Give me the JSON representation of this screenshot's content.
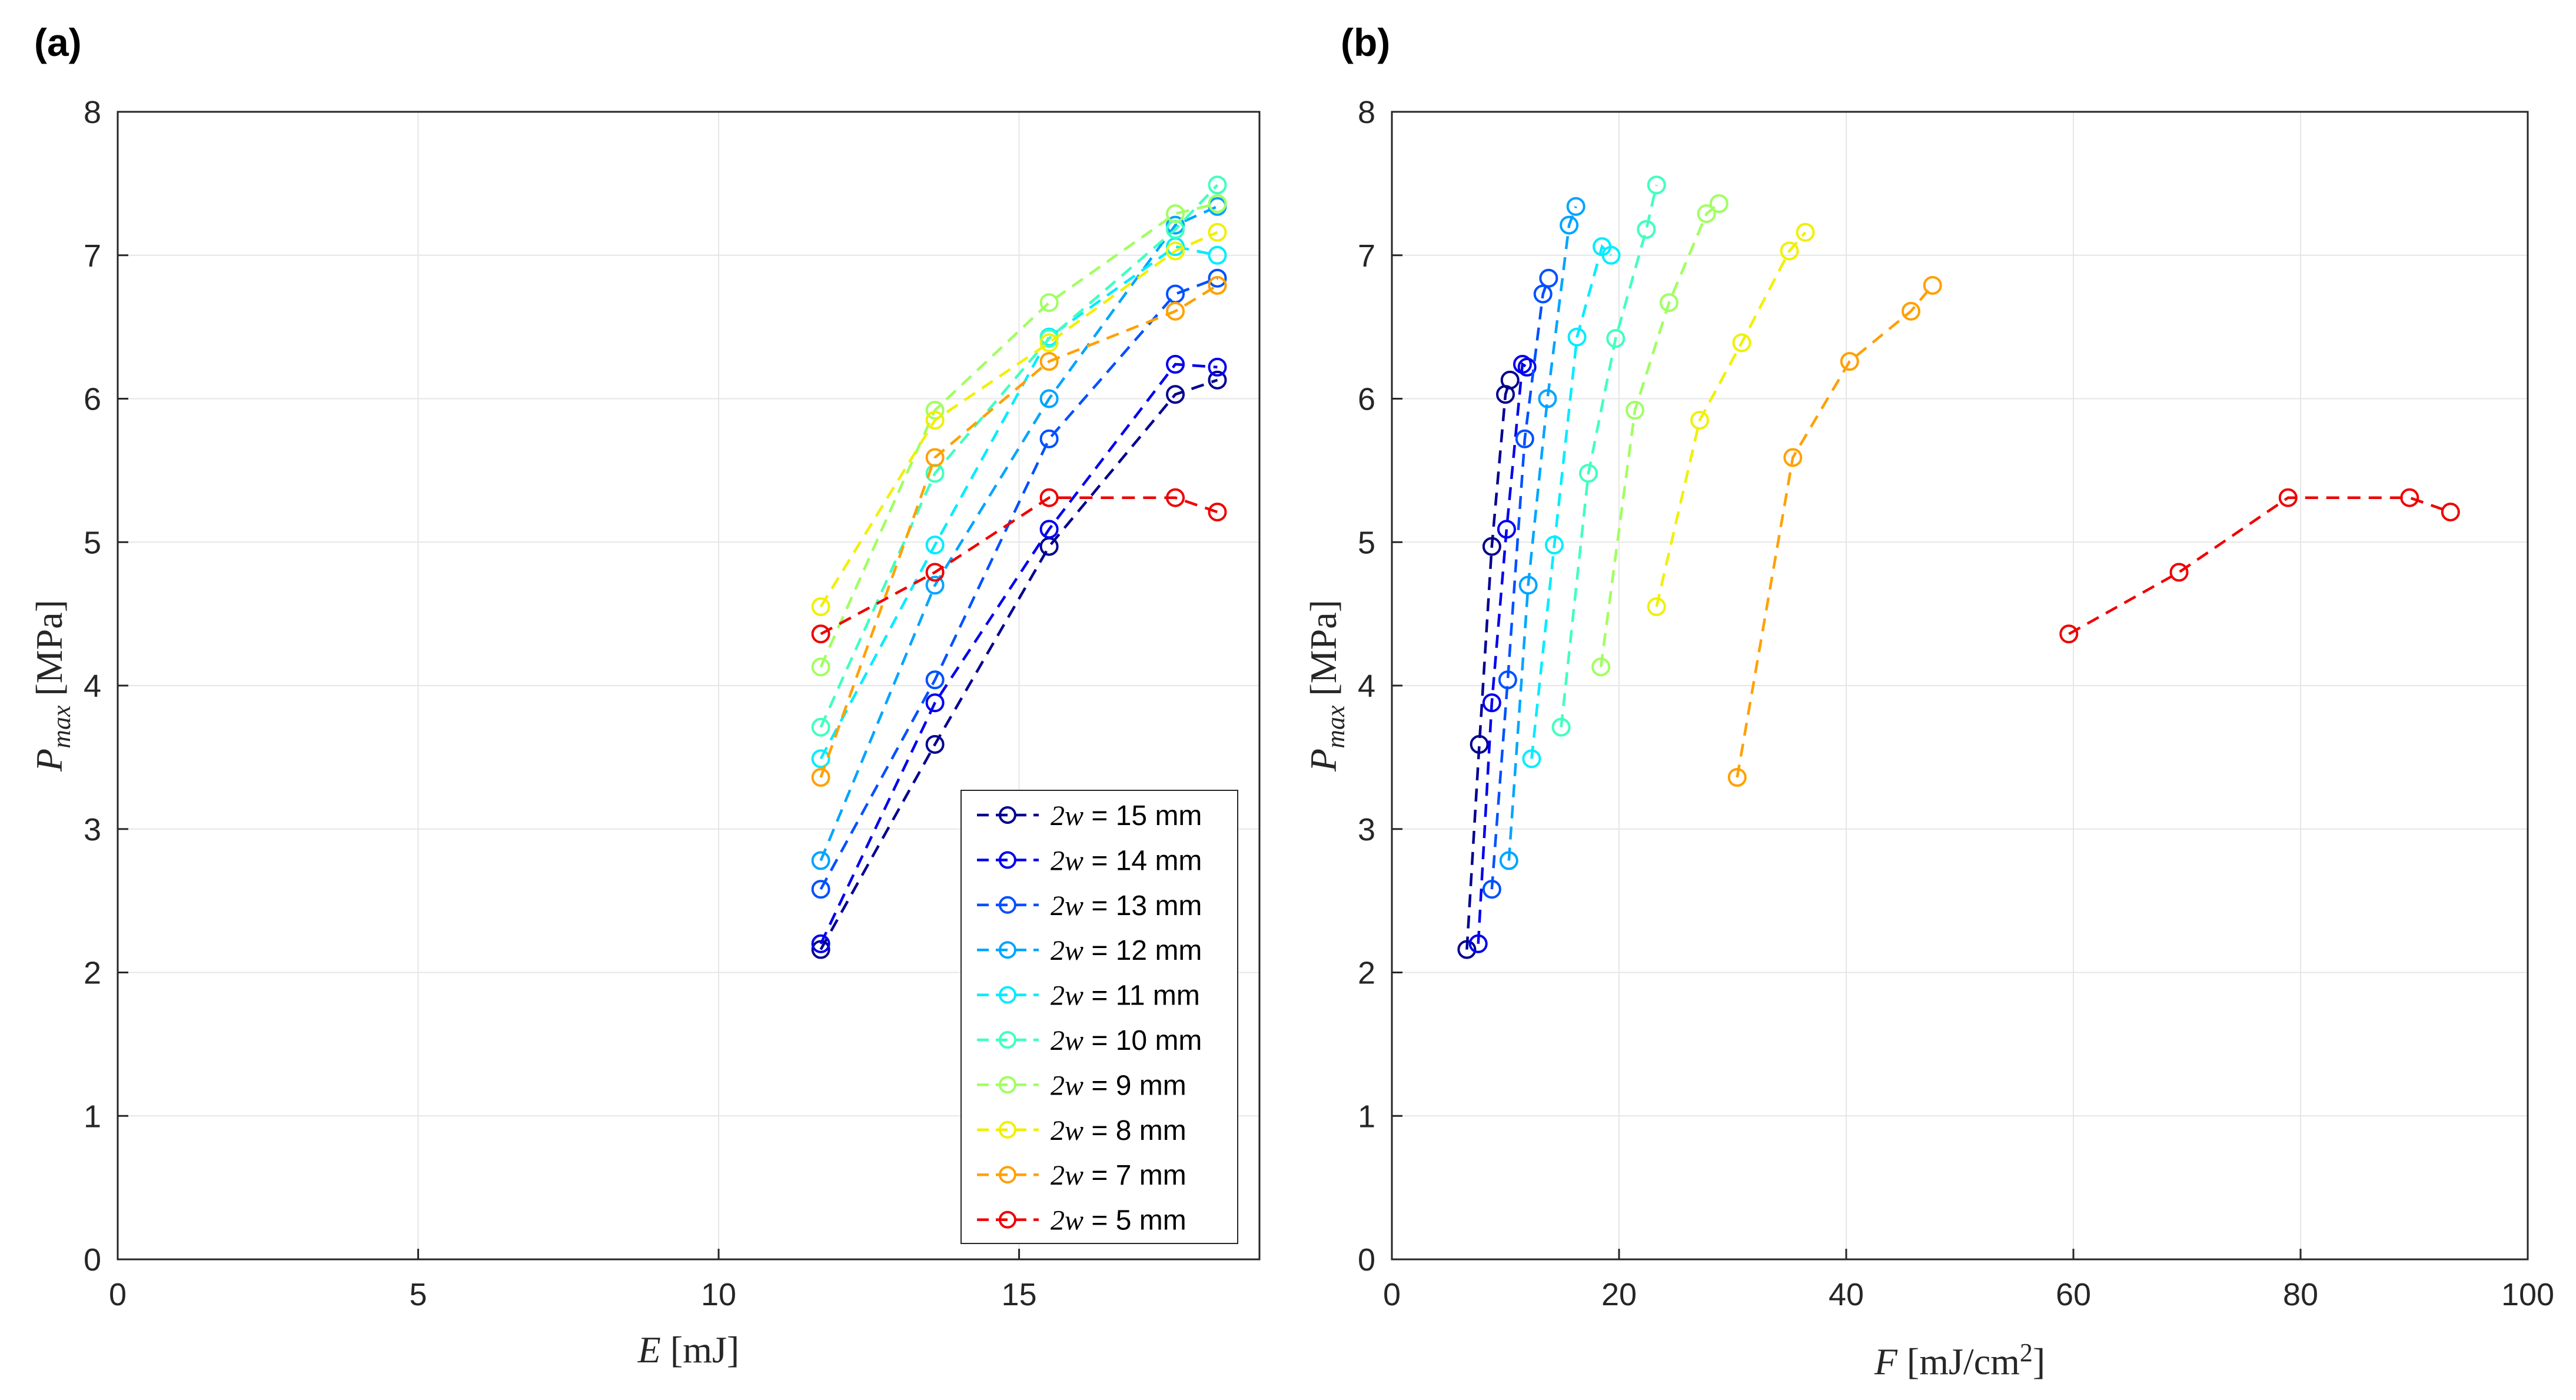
{
  "chart_data": [
    {
      "panel_label": "(a)",
      "type": "line",
      "xlabel_var": "E",
      "xlabel_unit": " [mJ]",
      "ylabel_var": "P",
      "ylabel_sub": "max",
      "ylabel_unit": " [MPa]",
      "xlim": [
        0,
        19
      ],
      "ylim": [
        0,
        8
      ],
      "xticks": [
        "0",
        "5",
        "10",
        "15"
      ],
      "xtick_values": [
        0,
        5,
        10,
        15
      ],
      "yticks": [
        "0",
        "1",
        "2",
        "3",
        "4",
        "5",
        "6",
        "7",
        "8"
      ],
      "ytick_values": [
        0,
        1,
        2,
        3,
        4,
        5,
        6,
        7,
        8
      ],
      "grid": true,
      "legend_position": "lower-right",
      "series": [
        {
          "name_prefix": "2w",
          "name_suffix": " = 15 mm",
          "color": "#00008f",
          "x": [
            11.7,
            13.6,
            15.5,
            17.6,
            18.3
          ],
          "y": [
            2.16,
            3.59,
            4.97,
            6.03,
            6.13
          ]
        },
        {
          "name_prefix": "2w",
          "name_suffix": " = 14 mm",
          "color": "#0000ef",
          "x": [
            11.7,
            13.6,
            15.5,
            17.6,
            18.3
          ],
          "y": [
            2.2,
            3.88,
            5.09,
            6.24,
            6.22
          ]
        },
        {
          "name_prefix": "2w",
          "name_suffix": " = 13 mm",
          "color": "#0050ff",
          "x": [
            11.7,
            13.6,
            15.5,
            17.6,
            18.3
          ],
          "y": [
            2.58,
            4.04,
            5.72,
            6.73,
            6.84
          ]
        },
        {
          "name_prefix": "2w",
          "name_suffix": " = 12 mm",
          "color": "#00a4ff",
          "x": [
            11.7,
            13.6,
            15.5,
            17.6,
            18.3
          ],
          "y": [
            2.78,
            4.7,
            6.0,
            7.21,
            7.34
          ]
        },
        {
          "name_prefix": "2w",
          "name_suffix": " = 11 mm",
          "color": "#00ecff",
          "x": [
            11.7,
            13.6,
            15.5,
            17.6,
            18.3
          ],
          "y": [
            3.49,
            4.98,
            6.43,
            7.06,
            7.0
          ]
        },
        {
          "name_prefix": "2w",
          "name_suffix": " = 10 mm",
          "color": "#40ffbf",
          "x": [
            11.7,
            13.6,
            15.5,
            17.6,
            18.3
          ],
          "y": [
            3.71,
            5.48,
            6.42,
            7.18,
            7.49
          ]
        },
        {
          "name_prefix": "2w",
          "name_suffix": " = 9 mm",
          "color": "#a0ff60",
          "x": [
            11.7,
            13.6,
            15.5,
            17.6,
            18.3
          ],
          "y": [
            4.13,
            5.92,
            6.67,
            7.29,
            7.36
          ]
        },
        {
          "name_prefix": "2w",
          "name_suffix": " = 8 mm",
          "color": "#f0f000",
          "x": [
            11.7,
            13.6,
            15.5,
            17.6,
            18.3
          ],
          "y": [
            4.55,
            5.85,
            6.39,
            7.03,
            7.16
          ]
        },
        {
          "name_prefix": "2w",
          "name_suffix": " = 7 mm",
          "color": "#ffa000",
          "x": [
            11.7,
            13.6,
            15.5,
            17.6,
            18.3
          ],
          "y": [
            3.36,
            5.59,
            6.26,
            6.61,
            6.79
          ]
        },
        {
          "name_prefix": "2w",
          "name_suffix": " = 5 mm",
          "color": "#ee0000",
          "x": [
            11.7,
            13.6,
            15.5,
            17.6,
            18.3
          ],
          "y": [
            4.36,
            4.79,
            5.31,
            5.31,
            5.21
          ]
        }
      ]
    },
    {
      "panel_label": "(b)",
      "type": "line",
      "xlabel_var": "F",
      "xlabel_unit": " [mJ/cm",
      "xlabel_sup": "2",
      "xlabel_close": "]",
      "ylabel_var": "P",
      "ylabel_sub": "max",
      "ylabel_unit": " [MPa]",
      "xlim": [
        0,
        100
      ],
      "ylim": [
        0,
        8
      ],
      "xticks": [
        "0",
        "20",
        "40",
        "60",
        "80",
        "100"
      ],
      "xtick_values": [
        0,
        20,
        40,
        60,
        80,
        100
      ],
      "yticks": [
        "0",
        "1",
        "2",
        "3",
        "4",
        "5",
        "6",
        "7",
        "8"
      ],
      "ytick_values": [
        0,
        1,
        2,
        3,
        4,
        5,
        6,
        7,
        8
      ],
      "grid": true,
      "series": [
        {
          "name": "2w = 15 mm",
          "color": "#00008f",
          "x": [
            6.6,
            7.7,
            8.8,
            10.0,
            10.4
          ],
          "y": [
            2.16,
            3.59,
            4.97,
            6.03,
            6.13
          ]
        },
        {
          "name": "2w = 14 mm",
          "color": "#0000ef",
          "x": [
            7.6,
            8.8,
            10.1,
            11.5,
            11.9
          ],
          "y": [
            2.2,
            3.88,
            5.09,
            6.24,
            6.22
          ]
        },
        {
          "name": "2w = 13 mm",
          "color": "#0050ff",
          "x": [
            8.8,
            10.2,
            11.7,
            13.3,
            13.8
          ],
          "y": [
            2.58,
            4.04,
            5.72,
            6.73,
            6.84
          ]
        },
        {
          "name": "2w = 12 mm",
          "color": "#00a4ff",
          "x": [
            10.3,
            12.0,
            13.7,
            15.6,
            16.2
          ],
          "y": [
            2.78,
            4.7,
            6.0,
            7.21,
            7.34
          ]
        },
        {
          "name": "2w = 11 mm",
          "color": "#00ecff",
          "x": [
            12.3,
            14.3,
            16.3,
            18.5,
            19.3
          ],
          "y": [
            3.49,
            4.98,
            6.43,
            7.06,
            7.0
          ]
        },
        {
          "name": "2w = 10 mm",
          "color": "#40ffbf",
          "x": [
            14.9,
            17.3,
            19.7,
            22.4,
            23.3
          ],
          "y": [
            3.71,
            5.48,
            6.42,
            7.18,
            7.49
          ]
        },
        {
          "name": "2w = 9 mm",
          "color": "#a0ff60",
          "x": [
            18.4,
            21.4,
            24.4,
            27.7,
            28.8
          ],
          "y": [
            4.13,
            5.92,
            6.67,
            7.29,
            7.36
          ]
        },
        {
          "name": "2w = 8 mm",
          "color": "#f0f000",
          "x": [
            23.3,
            27.1,
            30.8,
            35.0,
            36.4
          ],
          "y": [
            4.55,
            5.85,
            6.39,
            7.03,
            7.16
          ]
        },
        {
          "name": "2w = 7 mm",
          "color": "#ffa000",
          "x": [
            30.4,
            35.3,
            40.3,
            45.7,
            47.6
          ],
          "y": [
            3.36,
            5.59,
            6.26,
            6.61,
            6.79
          ]
        },
        {
          "name": "2w = 5 mm",
          "color": "#ee0000",
          "x": [
            59.6,
            69.3,
            78.9,
            89.6,
            93.2
          ],
          "y": [
            4.36,
            4.79,
            5.31,
            5.31,
            5.21
          ]
        }
      ]
    }
  ]
}
